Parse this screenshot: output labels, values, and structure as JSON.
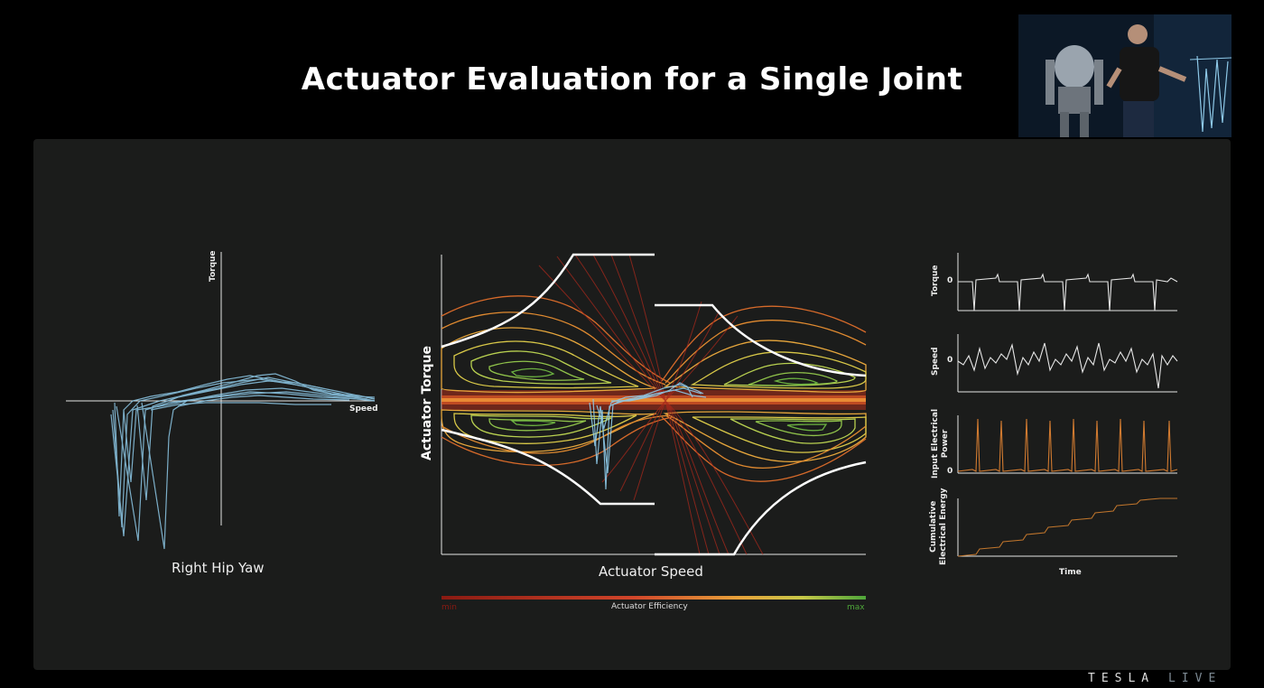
{
  "slide": {
    "title": "Actuator Evaluation for a Single Joint"
  },
  "left_plot": {
    "y_axis_label": "Torque",
    "x_axis_label": "Speed",
    "caption": "Right Hip Yaw"
  },
  "center_plot": {
    "y_axis_label": "Actuator Torque",
    "x_axis_label": "Actuator Speed",
    "colorbar": {
      "min_label": "min",
      "title": "Actuator Efficiency",
      "max_label": "max",
      "min_color": "#8b1a12",
      "max_color": "#4ea63a"
    }
  },
  "right_plots": [
    {
      "label": "Torque",
      "zero_label": "0"
    },
    {
      "label": "Speed",
      "zero_label": "0"
    },
    {
      "label": "Input Electrical Power",
      "line1": "Input Electrical",
      "line2": "Power",
      "zero_label": "0"
    },
    {
      "label": "Cumulative Electrical Energy",
      "line1": "Cumulative",
      "line2": "Electrical Energy",
      "x_label": "Time"
    }
  ],
  "branding": {
    "brand": "TESLA",
    "live": "LIVE"
  },
  "colors": {
    "trajectory": "#8ec9e8",
    "power_trace": "#d07a30",
    "energy_trace": "#c0752c",
    "panel_bg": "#1b1c1b"
  }
}
